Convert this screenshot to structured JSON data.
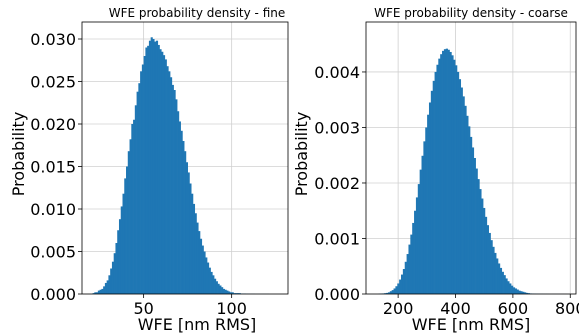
{
  "chart_data": [
    {
      "type": "bar",
      "title": "WFE probability density - fine",
      "xlabel": "WFE [nm RMS]",
      "ylabel": "Probability",
      "xlim": [
        15,
        132
      ],
      "ylim": [
        0,
        0.032
      ],
      "xticks": [
        50,
        100
      ],
      "xtick_labels": [
        "50",
        "100"
      ],
      "yticks": [
        0,
        0.005,
        0.01,
        0.015,
        0.02,
        0.025,
        0.03
      ],
      "ytick_labels": [
        "0.000",
        "0.005",
        "0.010",
        "0.015",
        "0.020",
        "0.025",
        "0.030"
      ],
      "grid": true,
      "color": "#1f77b4",
      "bins": {
        "start": 21,
        "width": 1
      },
      "values": [
        0.0001,
        0.0002,
        0.0002,
        0.0004,
        0.0005,
        0.0006,
        0.0009,
        0.0013,
        0.0016,
        0.0022,
        0.003,
        0.0038,
        0.0048,
        0.006,
        0.0075,
        0.0088,
        0.0103,
        0.0118,
        0.0136,
        0.015,
        0.0168,
        0.0182,
        0.02,
        0.0205,
        0.0222,
        0.0238,
        0.0248,
        0.0262,
        0.027,
        0.028,
        0.029,
        0.0292,
        0.0298,
        0.0302,
        0.03,
        0.0297,
        0.0298,
        0.0293,
        0.0288,
        0.0285,
        0.0281,
        0.0276,
        0.0268,
        0.0262,
        0.0255,
        0.0246,
        0.024,
        0.0229,
        0.0215,
        0.0203,
        0.0192,
        0.018,
        0.0168,
        0.0155,
        0.0143,
        0.013,
        0.0118,
        0.0106,
        0.0095,
        0.0084,
        0.0074,
        0.0065,
        0.0057,
        0.005,
        0.0043,
        0.0037,
        0.0031,
        0.0026,
        0.0022,
        0.0018,
        0.0015,
        0.0012,
        0.001,
        0.0008,
        0.0006,
        0.0005,
        0.0004,
        0.0003,
        0.0002,
        0.0002,
        0.0001,
        0.0001,
        0.0001,
        0.0001,
        5e-05,
        5e-05,
        5e-05,
        3e-05,
        3e-05,
        2e-05,
        2e-05,
        2e-05,
        1e-05,
        1e-05,
        1e-05,
        1e-05,
        1e-05,
        1e-05,
        1e-05,
        1e-05
      ]
    },
    {
      "type": "bar",
      "title": "WFE probability density - coarse",
      "xlabel": "WFE [nm RMS]",
      "ylabel": "Probability",
      "xlim": [
        88,
        820
      ],
      "ylim": [
        0,
        0.0049
      ],
      "xticks": [
        200,
        400,
        600,
        800
      ],
      "xtick_labels": [
        "200",
        "400",
        "600",
        "800"
      ],
      "yticks": [
        0,
        0.001,
        0.002,
        0.003,
        0.004
      ],
      "ytick_labels": [
        "0.000",
        "0.001",
        "0.002",
        "0.003",
        "0.004"
      ],
      "grid": true,
      "color": "#1f77b4",
      "bins": {
        "start": 132,
        "width": 6.5
      },
      "values": [
        5e-06,
        8e-06,
        1e-05,
        1.5e-05,
        2e-05,
        3e-05,
        5e-05,
        7e-05,
        0.0001,
        0.00014,
        0.00019,
        0.00026,
        0.00035,
        0.00045,
        0.00058,
        0.00072,
        0.00089,
        0.00107,
        0.00128,
        0.0015,
        0.00174,
        0.00198,
        0.00224,
        0.00249,
        0.00275,
        0.003,
        0.00323,
        0.00345,
        0.00366,
        0.00384,
        0.004,
        0.00413,
        0.00424,
        0.00432,
        0.00438,
        0.00441,
        0.00442,
        0.0044,
        0.00436,
        0.0043,
        0.00422,
        0.00412,
        0.004,
        0.00387,
        0.00372,
        0.00356,
        0.00339,
        0.00321,
        0.00302,
        0.00283,
        0.00264,
        0.00245,
        0.00226,
        0.00207,
        0.00189,
        0.00172,
        0.00155,
        0.00139,
        0.00124,
        0.0011,
        0.00097,
        0.00085,
        0.00074,
        0.00064,
        0.00055,
        0.00047,
        0.0004,
        0.00034,
        0.00028,
        0.00023,
        0.00019,
        0.00015,
        0.00012,
        0.0001,
        8e-05,
        6e-05,
        5e-05,
        4e-05,
        3e-05,
        2e-05,
        1.5e-05,
        1e-05,
        8e-06,
        6e-06,
        5e-06,
        4e-06,
        3e-06,
        3e-06,
        2e-06,
        2e-06,
        2e-06,
        1e-06,
        1e-06,
        1e-06,
        1e-06,
        1e-06,
        1e-06,
        1e-06,
        1e-06,
        1e-06,
        1e-06
      ]
    }
  ]
}
